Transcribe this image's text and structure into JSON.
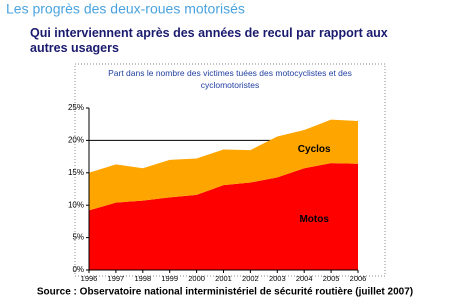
{
  "header": {
    "title": "Les progrès des deux-roues motorisés",
    "subtitle": "Qui interviennent après des années de recul par rapport aux autres usagers"
  },
  "chart_data": {
    "type": "stacked_area",
    "title": "Part dans le nombre des victimes tuées des motocyclistes et des cyclomotoristes",
    "categories": [
      "1996",
      "1997",
      "1998",
      "1999",
      "2000",
      "2001",
      "2002",
      "2003",
      "2004",
      "2005",
      "2006"
    ],
    "series": [
      {
        "name": "Motos",
        "color": "#ff0000",
        "values": [
          9.2,
          10.4,
          10.7,
          11.2,
          11.6,
          13.1,
          13.5,
          14.3,
          15.7,
          16.5,
          16.4
        ]
      },
      {
        "name": "Cyclos",
        "color": "#ffa500",
        "values": [
          5.8,
          5.9,
          5.0,
          5.8,
          5.6,
          5.5,
          5.0,
          6.3,
          5.9,
          6.7,
          6.6
        ]
      }
    ],
    "ylim": [
      0,
      25
    ],
    "yticks": [
      {
        "value": 0,
        "label": "0%"
      },
      {
        "value": 5,
        "label": "5%"
      },
      {
        "value": 10,
        "label": "10%"
      },
      {
        "value": 15,
        "label": "15%"
      },
      {
        "value": 20,
        "label": "20%"
      },
      {
        "value": 25,
        "label": "25%"
      }
    ],
    "reference_line": 20
  },
  "footer": {
    "source": "Source : Observatoire national interministériel de sécurité routière (juillet 2007)"
  }
}
